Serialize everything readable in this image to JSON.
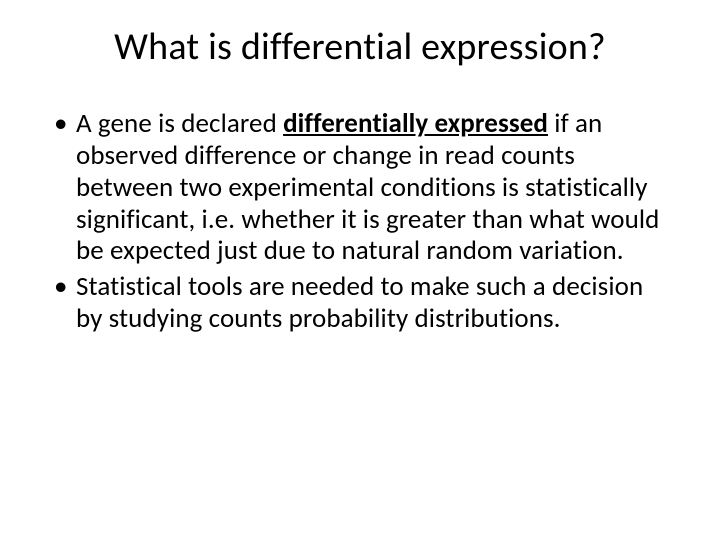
{
  "slide": {
    "title": "What is differential expression?",
    "bullets": [
      {
        "prefix": "A gene is declared ",
        "emphasis": "differentially expressed",
        "suffix": " if an observed difference or change in read counts between two experimental conditions is statistically significant, i.e. whether it is greater than what would be expected just due to natural random variation."
      },
      {
        "prefix": "Statistical tools are needed to make such a decision by studying counts probability distributions.",
        "emphasis": "",
        "suffix": ""
      }
    ],
    "styling": {
      "background_color": "#ffffff",
      "text_color": "#000000",
      "title_fontsize": 38,
      "body_fontsize": 27,
      "font_family": "Calibri"
    }
  }
}
